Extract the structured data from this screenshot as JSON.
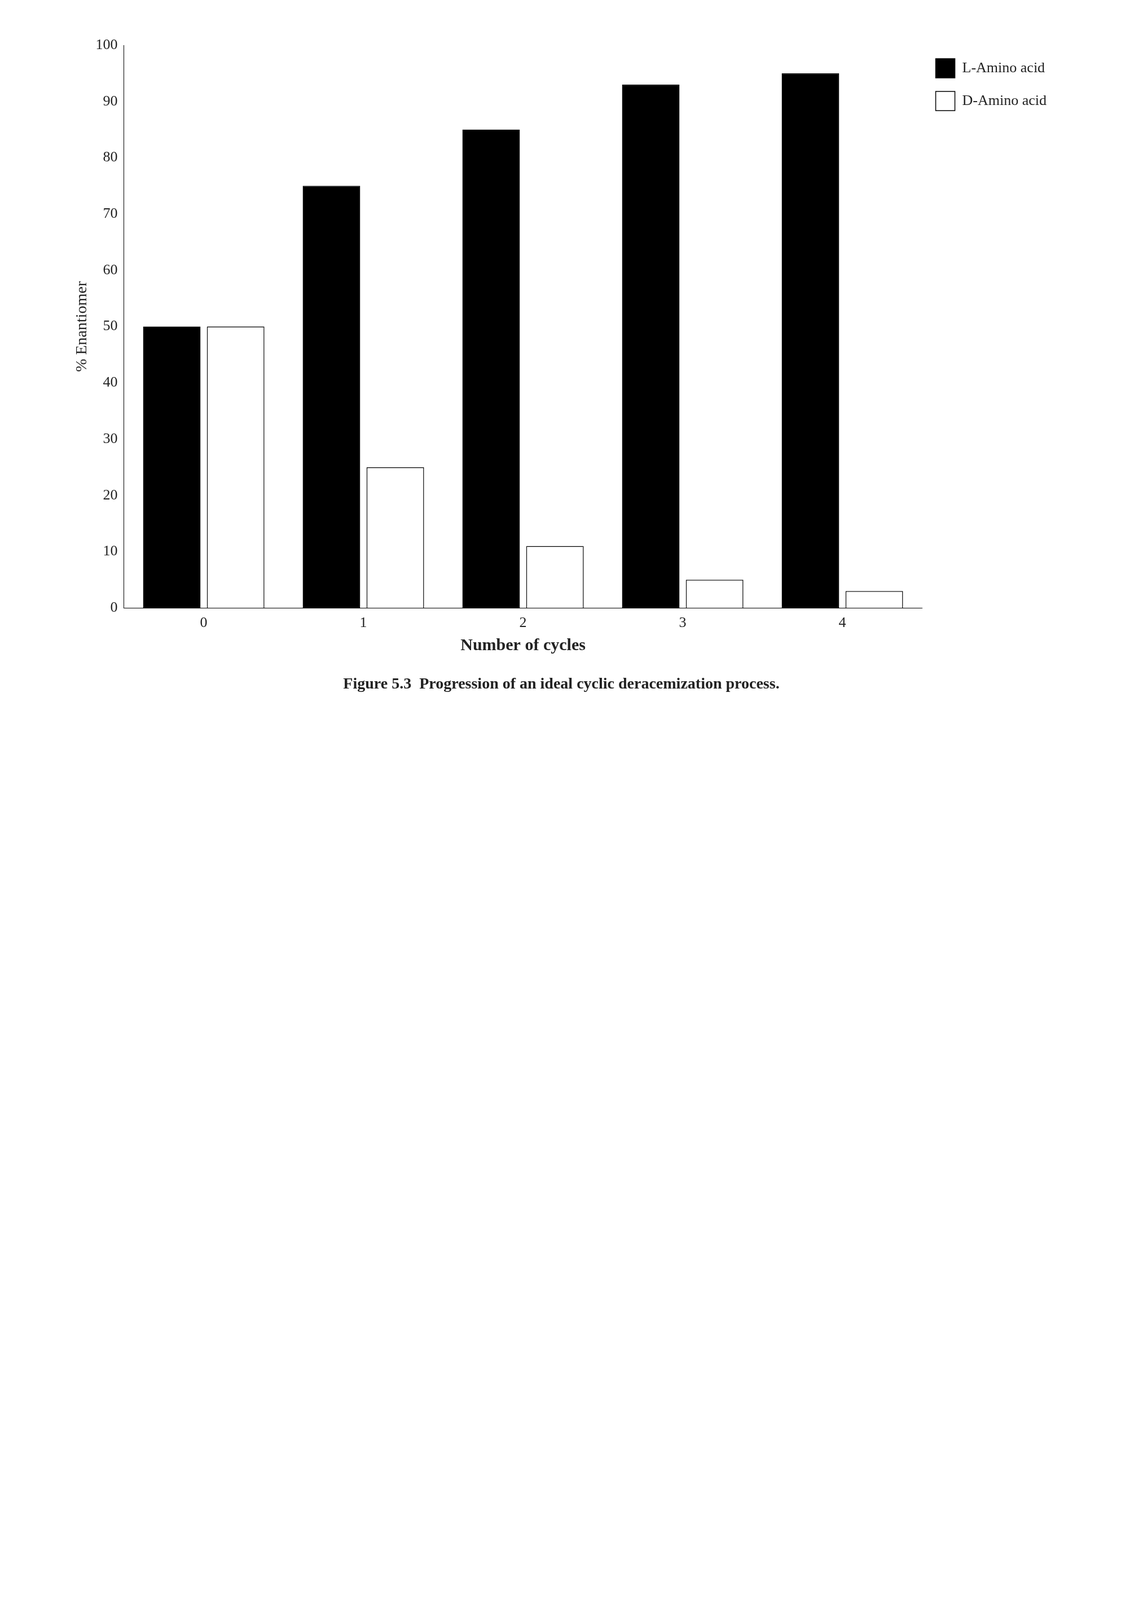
{
  "chart_data": {
    "type": "bar",
    "title": "Figure 5.3  Progression of an ideal cyclic deracemization process.",
    "x_label": "Number of cycles",
    "y_label": "% Enantiomer",
    "categories": [
      0,
      1,
      2,
      3,
      4
    ],
    "series": [
      {
        "name": "L-Amino acid",
        "color": "#000000",
        "values": [
          50,
          75,
          85,
          93,
          95
        ]
      },
      {
        "name": "D-Amino acid",
        "color": "#ffffff",
        "values": [
          50,
          25,
          11,
          5,
          3
        ]
      }
    ],
    "ylim": [
      0,
      100
    ],
    "yticks": [
      0,
      10,
      20,
      30,
      40,
      50,
      60,
      70,
      80,
      90,
      100
    ],
    "grid": false,
    "legend": "right"
  }
}
